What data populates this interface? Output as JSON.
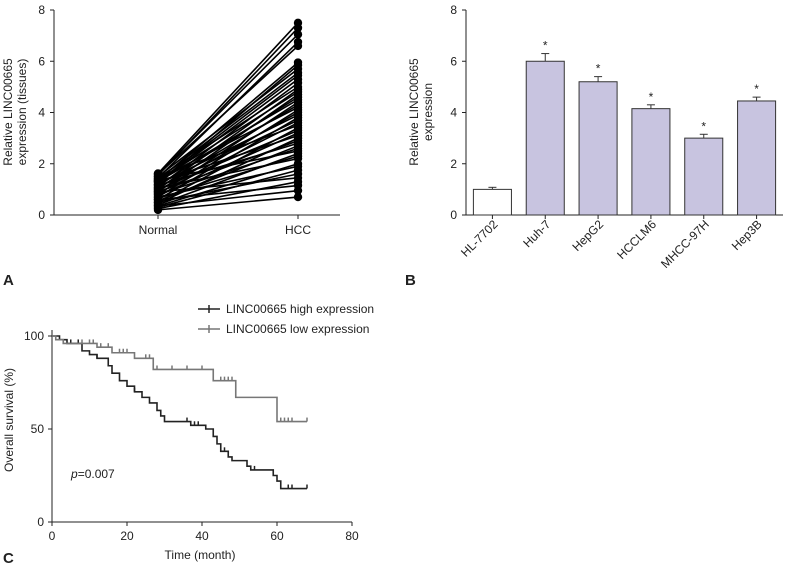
{
  "panels": {
    "a": "A",
    "b": "B",
    "c": "C"
  },
  "chart_data": [
    {
      "panel": "A",
      "type": "line",
      "categories": [
        "Normal",
        "HCC"
      ],
      "ylabel_line1": "Relative LINC00665",
      "ylabel_line2": "expression (tissues)",
      "xlabel": "",
      "ylim": [
        0,
        8
      ],
      "yticks": [
        0,
        2,
        4,
        6,
        8
      ],
      "paired_values": [
        [
          1.62,
          7.5
        ],
        [
          1.55,
          7.3
        ],
        [
          1.6,
          7.05
        ],
        [
          1.45,
          6.75
        ],
        [
          1.58,
          6.6
        ],
        [
          1.35,
          5.95
        ],
        [
          1.2,
          5.85
        ],
        [
          1.5,
          5.7
        ],
        [
          1.4,
          5.55
        ],
        [
          1.3,
          5.45
        ],
        [
          1.25,
          5.3
        ],
        [
          1.1,
          5.15
        ],
        [
          1.45,
          5.0
        ],
        [
          1.0,
          4.9
        ],
        [
          1.35,
          4.8
        ],
        [
          0.9,
          4.7
        ],
        [
          1.15,
          4.6
        ],
        [
          1.3,
          4.5
        ],
        [
          0.8,
          4.4
        ],
        [
          1.05,
          4.3
        ],
        [
          1.4,
          4.2
        ],
        [
          0.7,
          4.1
        ],
        [
          0.95,
          4.0
        ],
        [
          1.2,
          3.9
        ],
        [
          0.6,
          3.8
        ],
        [
          1.1,
          3.7
        ],
        [
          0.85,
          3.6
        ],
        [
          1.5,
          3.5
        ],
        [
          0.5,
          3.4
        ],
        [
          1.0,
          3.3
        ],
        [
          0.75,
          3.2
        ],
        [
          1.3,
          3.1
        ],
        [
          0.45,
          3.0
        ],
        [
          0.9,
          2.9
        ],
        [
          1.15,
          2.8
        ],
        [
          0.55,
          2.7
        ],
        [
          0.8,
          2.6
        ],
        [
          1.35,
          2.5
        ],
        [
          0.4,
          2.4
        ],
        [
          0.65,
          2.3
        ],
        [
          1.05,
          2.2
        ],
        [
          0.35,
          2.0
        ],
        [
          0.7,
          1.9
        ],
        [
          0.3,
          1.75
        ],
        [
          0.5,
          1.6
        ],
        [
          0.9,
          1.45
        ],
        [
          0.25,
          1.3
        ],
        [
          0.6,
          1.15
        ],
        [
          0.35,
          0.95
        ],
        [
          0.2,
          0.7
        ]
      ]
    },
    {
      "panel": "B",
      "type": "bar",
      "categories": [
        "HL-7702",
        "Huh-7",
        "HepG2",
        "HCCLM6",
        "MHCC-97H",
        "Hep3B"
      ],
      "values": [
        1.0,
        6.0,
        5.2,
        4.15,
        3.0,
        4.45
      ],
      "errors": [
        0.08,
        0.3,
        0.2,
        0.15,
        0.15,
        0.15
      ],
      "significance": [
        "",
        "*",
        "*",
        "*",
        "*",
        "*"
      ],
      "colors": [
        "#ffffff",
        "#c8c4e0",
        "#c8c4e0",
        "#c8c4e0",
        "#c8c4e0",
        "#c8c4e0"
      ],
      "ylabel_line1": "Relative LINC00665",
      "ylabel_line2": "expression",
      "ylim": [
        0,
        8
      ],
      "yticks": [
        0,
        2,
        4,
        6,
        8
      ]
    },
    {
      "panel": "C",
      "type": "line",
      "subtype": "kaplan-meier",
      "xlabel": "Time (month)",
      "ylabel": "Overall survival (%)",
      "xlim": [
        0,
        80
      ],
      "ylim": [
        0,
        100
      ],
      "xticks": [
        0,
        20,
        40,
        60,
        80
      ],
      "yticks": [
        0,
        50,
        100
      ],
      "annotation_p": "p",
      "annotation_rest": "=0.007",
      "legend_position": "top-right",
      "series": [
        {
          "name": "LINC00665 high expression",
          "color": "#222222",
          "steps": [
            [
              0,
              100
            ],
            [
              2,
              98
            ],
            [
              4,
              96
            ],
            [
              8,
              92
            ],
            [
              10,
              90
            ],
            [
              12,
              88
            ],
            [
              15,
              84
            ],
            [
              16,
              80
            ],
            [
              18,
              76
            ],
            [
              20,
              73
            ],
            [
              22,
              70
            ],
            [
              24,
              67
            ],
            [
              26,
              64
            ],
            [
              28,
              60
            ],
            [
              29,
              57
            ],
            [
              30,
              54
            ],
            [
              37,
              52
            ],
            [
              41,
              50
            ],
            [
              43,
              46
            ],
            [
              44,
              42
            ],
            [
              45,
              38
            ],
            [
              47,
              35
            ],
            [
              48,
              33
            ],
            [
              52,
              30
            ],
            [
              53,
              28
            ],
            [
              59,
              25
            ],
            [
              60,
              22
            ],
            [
              61,
              18
            ],
            [
              68,
              18
            ]
          ],
          "censor": [
            5,
            7,
            12,
            22,
            36,
            38,
            39,
            46,
            54,
            63,
            64,
            68
          ]
        },
        {
          "name": "LINC00665 low expression",
          "color": "#777777",
          "steps": [
            [
              0,
              100
            ],
            [
              1,
              98
            ],
            [
              3,
              96
            ],
            [
              12,
              94
            ],
            [
              16,
              91
            ],
            [
              22,
              88
            ],
            [
              27,
              82
            ],
            [
              43,
              76
            ],
            [
              49,
              67
            ],
            [
              55,
              67
            ],
            [
              60,
              54
            ],
            [
              68,
              54
            ]
          ],
          "censor": [
            8,
            10,
            11,
            13,
            15,
            18,
            19,
            20,
            25,
            26,
            28,
            32,
            36,
            40,
            45,
            46,
            47,
            48,
            61,
            62,
            63,
            64,
            68
          ]
        }
      ]
    }
  ]
}
